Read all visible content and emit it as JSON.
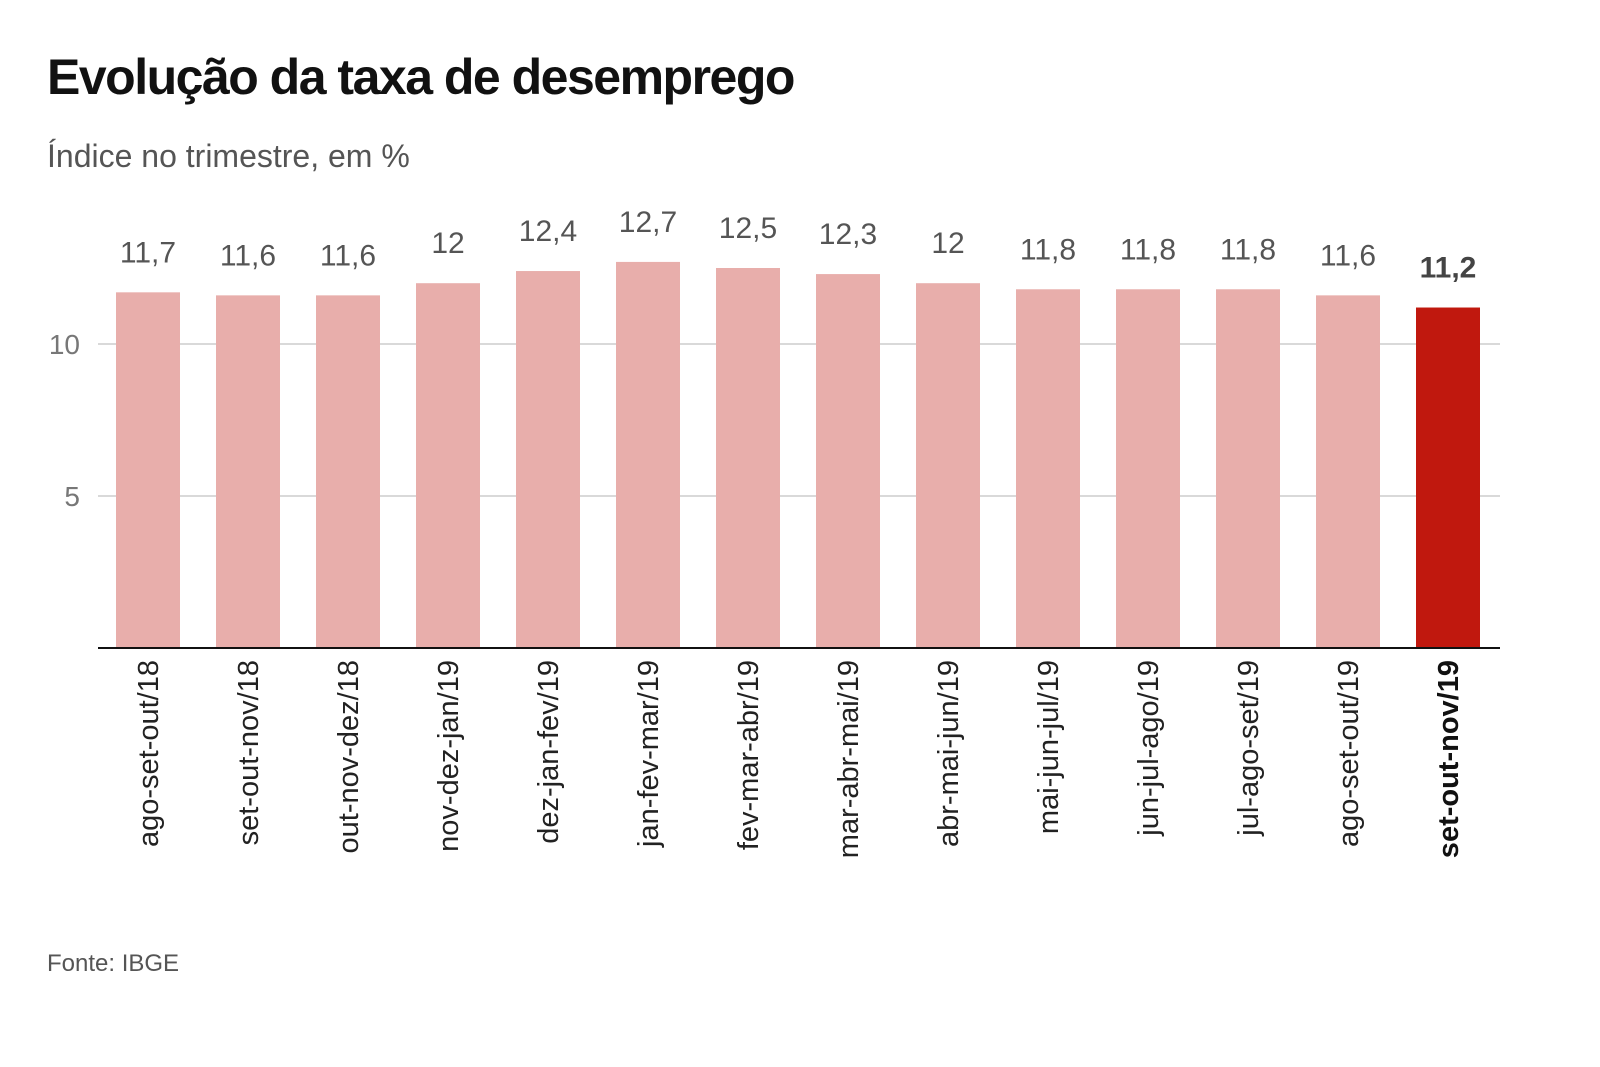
{
  "title": "Evolução da taxa de desemprego",
  "subtitle": "Índice no trimestre, em %",
  "source": "Fonte: IBGE",
  "colors": {
    "bar": "#e8aeab",
    "highlight": "#c0180e"
  },
  "chart_data": {
    "type": "bar",
    "categories": [
      "ago-set-out/18",
      "set-out-nov/18",
      "out-nov-dez/18",
      "nov-dez-jan/19",
      "dez-jan-fev/19",
      "jan-fev-mar/19",
      "fev-mar-abr/19",
      "mar-abr-mai/19",
      "abr-mai-jun/19",
      "mai-jun-jul/19",
      "jun-jul-ago/19",
      "jul-ago-set/19",
      "ago-set-out/19",
      "set-out-nov/19"
    ],
    "values": [
      11.7,
      11.6,
      11.6,
      12,
      12.4,
      12.7,
      12.5,
      12.3,
      12,
      11.8,
      11.8,
      11.8,
      11.6,
      11.2
    ],
    "value_labels": [
      "11,7",
      "11,6",
      "11,6",
      "12",
      "12,4",
      "12,7",
      "12,5",
      "12,3",
      "12",
      "11,8",
      "11,8",
      "11,8",
      "11,6",
      "11,2"
    ],
    "highlight_index": 13,
    "yticks": [
      5,
      10
    ],
    "ytick_labels": [
      "5",
      "10"
    ],
    "ylim": [
      0,
      13
    ],
    "grid": true,
    "xlabel": "",
    "ylabel": ""
  }
}
